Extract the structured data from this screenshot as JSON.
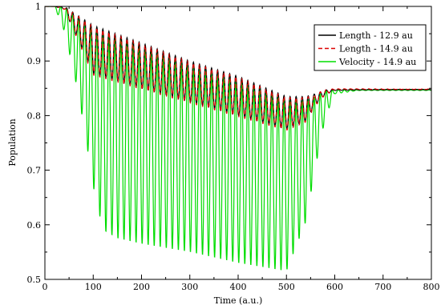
{
  "chart_data": {
    "type": "line",
    "title": "",
    "xlabel": "Time (a.u.)",
    "ylabel": "Population",
    "xlim": [
      0,
      800
    ],
    "ylim": [
      0.5,
      1.0
    ],
    "xticks": [
      0,
      100,
      200,
      300,
      400,
      500,
      600,
      700,
      800
    ],
    "yticks": [
      0.5,
      0.6,
      0.7,
      0.8,
      0.9,
      1.0
    ],
    "xtick_labels": [
      "0",
      "100",
      "200",
      "300",
      "400",
      "500",
      "600",
      "700",
      "800"
    ],
    "ytick_labels": [
      "0.5",
      "0.6",
      "0.7",
      "0.8",
      "0.9",
      "1"
    ],
    "grid": false,
    "legend_position": "top-right",
    "oscillation_period": 12.5,
    "pulse_window": [
      20,
      600
    ],
    "final_population": 0.847,
    "series": [
      {
        "name": "Length - 12.9 au",
        "color": "#000000",
        "dash": "solid",
        "upper_envelope": {
          "x": [
            20,
            40,
            100,
            200,
            300,
            400,
            500,
            540,
            560,
            580,
            600,
            650,
            800
          ],
          "y": [
            1.0,
            1.0,
            0.965,
            0.933,
            0.9,
            0.872,
            0.835,
            0.835,
            0.84,
            0.847,
            0.848,
            0.848,
            0.848
          ]
        },
        "lower_envelope": {
          "x": [
            20,
            40,
            100,
            200,
            300,
            400,
            500,
            540,
            560,
            580,
            600,
            650,
            800
          ],
          "y": [
            1.0,
            0.995,
            0.876,
            0.85,
            0.825,
            0.8,
            0.775,
            0.79,
            0.82,
            0.838,
            0.846,
            0.847,
            0.847
          ]
        }
      },
      {
        "name": "Length - 14.9 au",
        "color": "#dd0000",
        "dash": "dashed",
        "upper_envelope": {
          "x": [
            20,
            40,
            100,
            200,
            300,
            400,
            500,
            540,
            560,
            580,
            600,
            650,
            800
          ],
          "y": [
            1.0,
            1.0,
            0.963,
            0.931,
            0.898,
            0.87,
            0.833,
            0.833,
            0.839,
            0.848,
            0.849,
            0.849,
            0.849
          ]
        },
        "lower_envelope": {
          "x": [
            20,
            40,
            100,
            200,
            300,
            400,
            500,
            540,
            560,
            580,
            600,
            650,
            800
          ],
          "y": [
            1.0,
            0.995,
            0.874,
            0.848,
            0.823,
            0.798,
            0.773,
            0.788,
            0.818,
            0.838,
            0.847,
            0.848,
            0.848
          ]
        }
      },
      {
        "name": "Velocity - 14.9 au",
        "color": "#00dd00",
        "dash": "solid",
        "upper_envelope": {
          "x": [
            20,
            40,
            100,
            200,
            300,
            400,
            500,
            540,
            560,
            580,
            600,
            650,
            800
          ],
          "y": [
            1.0,
            1.0,
            0.96,
            0.928,
            0.895,
            0.866,
            0.828,
            0.828,
            0.835,
            0.845,
            0.847,
            0.847,
            0.847
          ]
        },
        "lower_envelope": {
          "x": [
            20,
            40,
            60,
            80,
            100,
            120,
            150,
            200,
            300,
            400,
            500,
            540,
            560,
            580,
            600,
            650,
            800
          ],
          "y": [
            1.0,
            0.955,
            0.88,
            0.785,
            0.67,
            0.59,
            0.575,
            0.565,
            0.55,
            0.53,
            0.515,
            0.605,
            0.705,
            0.795,
            0.84,
            0.846,
            0.846
          ]
        }
      }
    ]
  }
}
